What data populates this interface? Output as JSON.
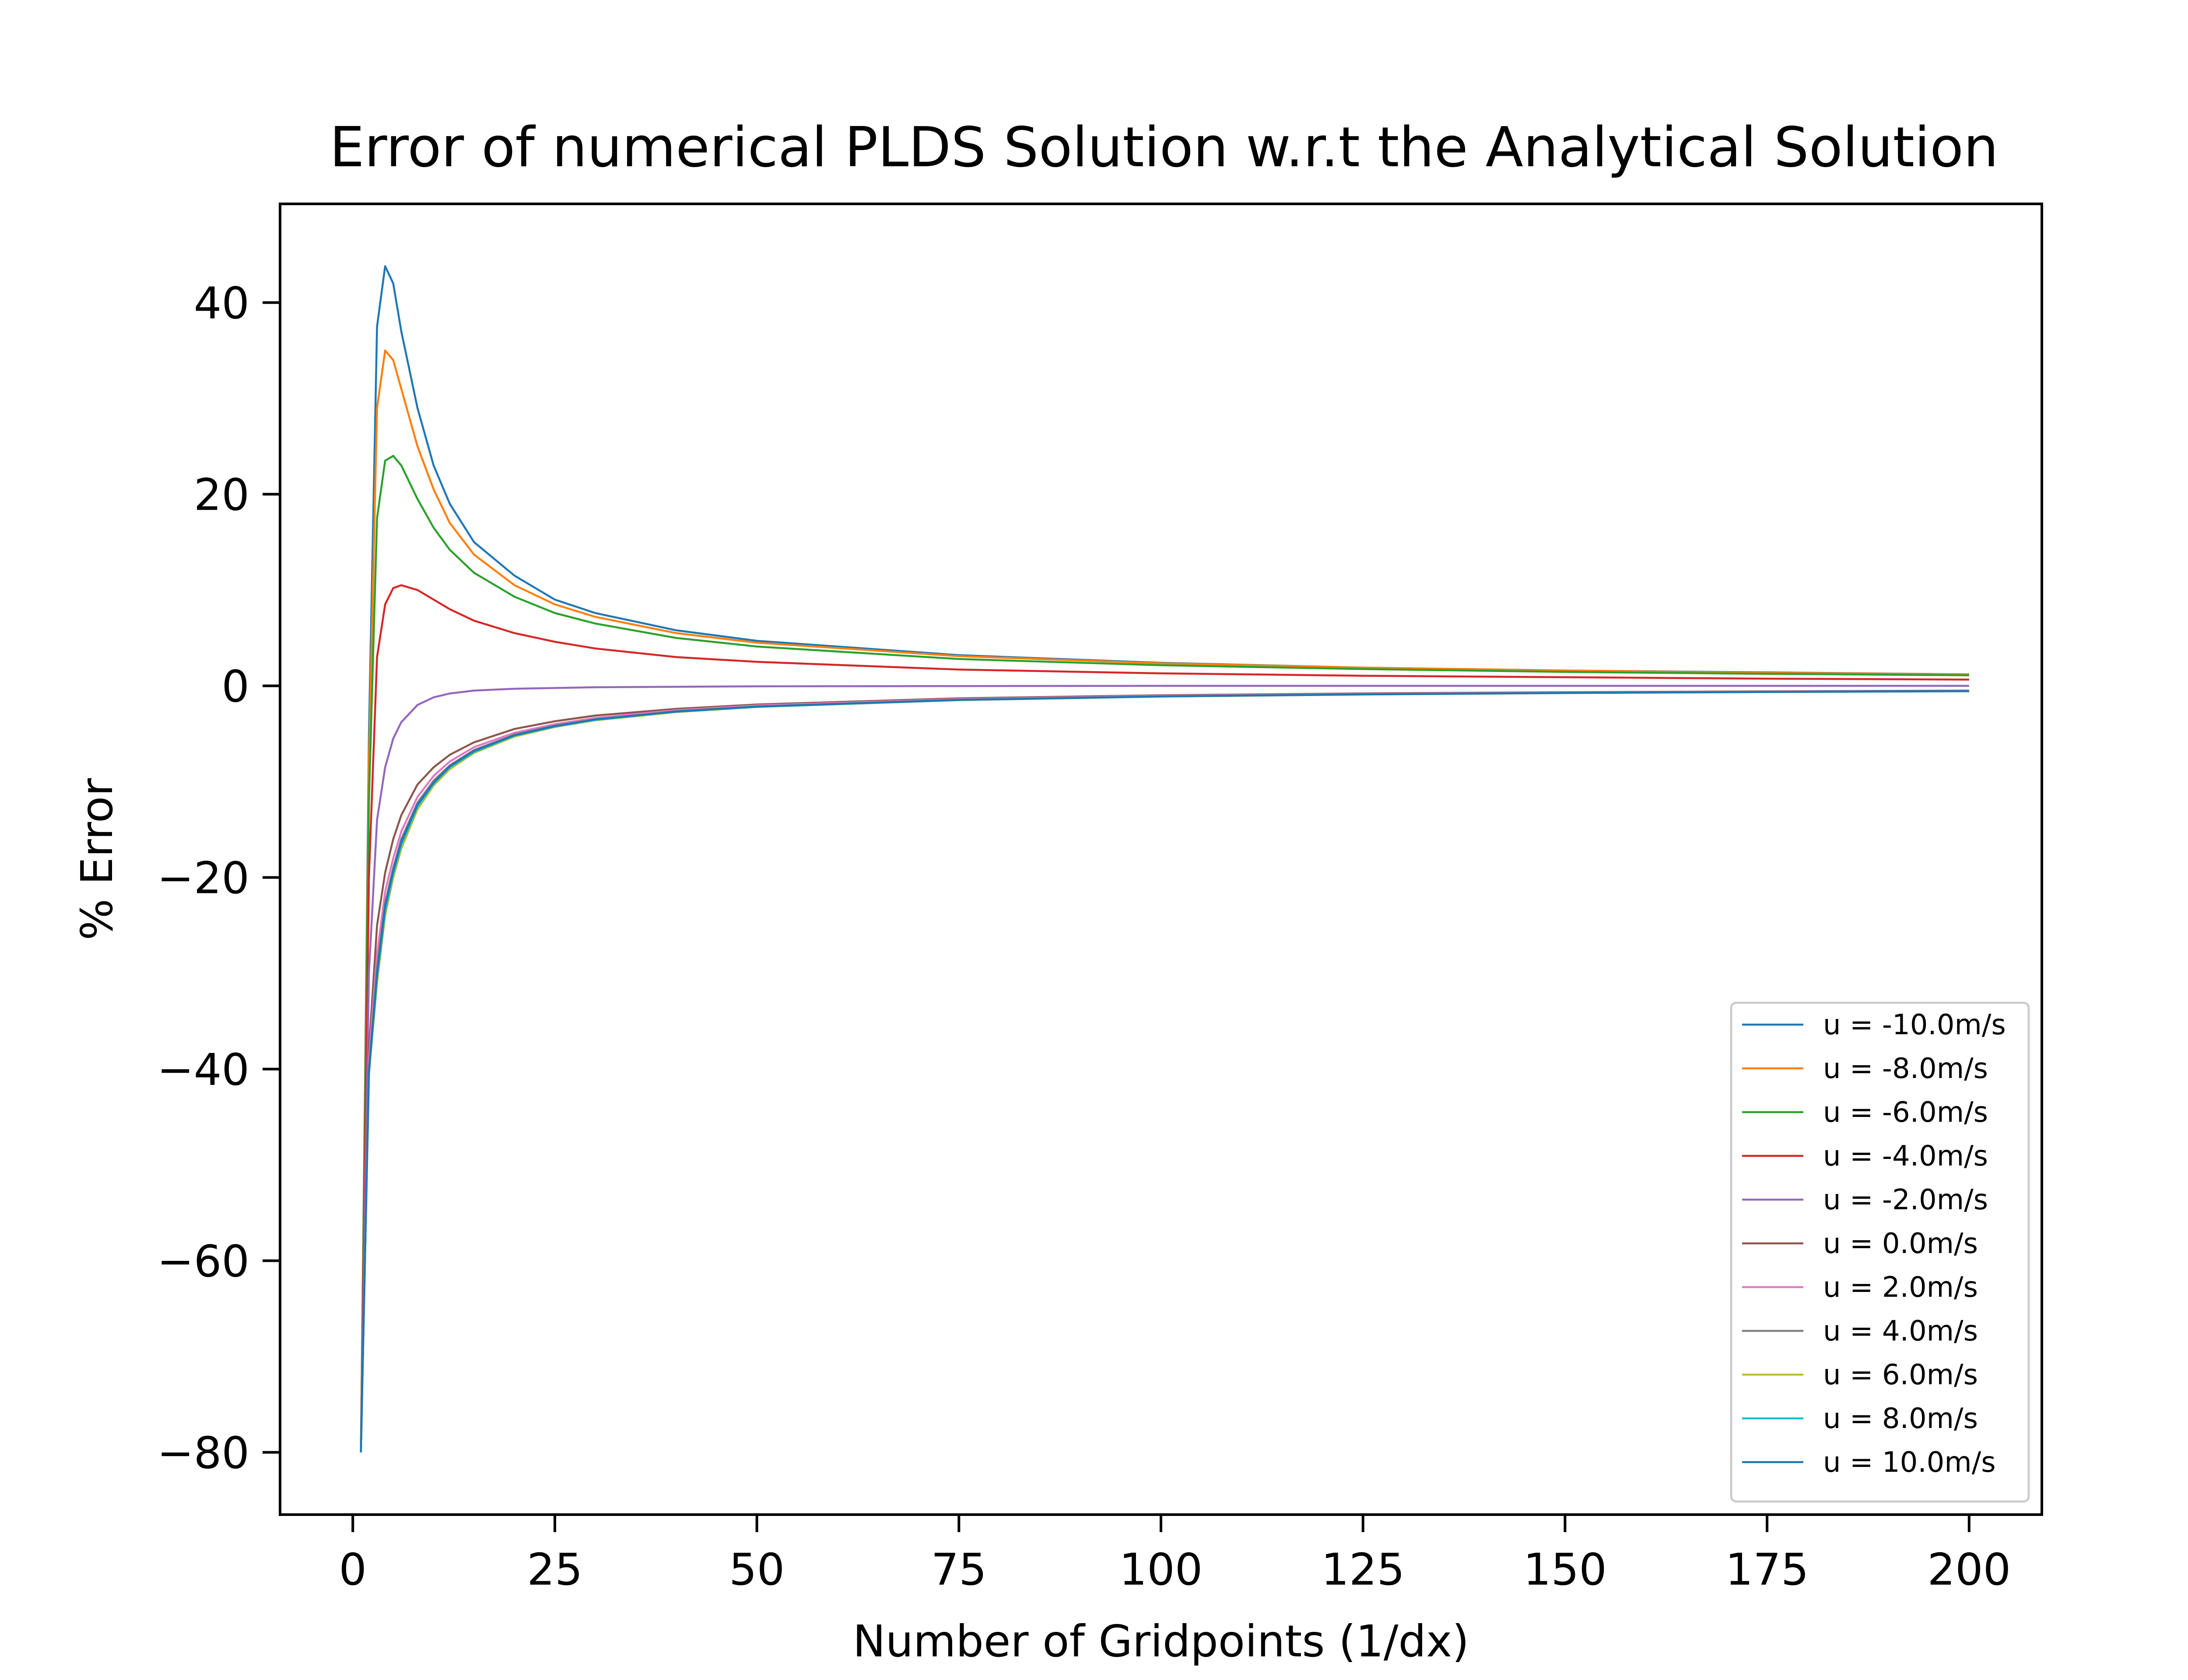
{
  "chart_data": {
    "type": "line",
    "title": "Error of numerical PLDS Solution w.r.t the Analytical Solution",
    "xlabel": "Number of Gridpoints (1/dx)",
    "ylabel": "% Error",
    "xlim": [
      -9,
      209
    ],
    "ylim": [
      -86.5,
      50.3
    ],
    "xticks": [
      0,
      25,
      50,
      75,
      100,
      125,
      150,
      175,
      200
    ],
    "yticks": [
      -80,
      -60,
      -40,
      -20,
      0,
      20,
      40
    ],
    "ytick_labels": [
      "−80",
      "−60",
      "−40",
      "−20",
      "0",
      "20",
      "40"
    ],
    "grid": false,
    "legend_position": "lower-right",
    "series": [
      {
        "name": "u = -10.0m/s",
        "color": "#1f77b4",
        "points": [
          [
            1,
            -80
          ],
          [
            2,
            -5
          ],
          [
            3,
            37.5
          ],
          [
            4,
            43.8
          ],
          [
            5,
            42
          ],
          [
            6,
            37
          ],
          [
            8,
            29
          ],
          [
            10,
            23
          ],
          [
            12,
            19
          ],
          [
            15,
            15
          ],
          [
            20,
            11.5
          ],
          [
            25,
            9
          ],
          [
            30,
            7.6
          ],
          [
            40,
            5.8
          ],
          [
            50,
            4.7
          ],
          [
            75,
            3.2
          ],
          [
            100,
            2.4
          ],
          [
            125,
            1.9
          ],
          [
            150,
            1.6
          ],
          [
            175,
            1.4
          ],
          [
            200,
            1.2
          ]
        ]
      },
      {
        "name": "u = -8.0m/s",
        "color": "#ff7f0e",
        "points": [
          [
            1,
            -80
          ],
          [
            2,
            -8
          ],
          [
            3,
            29
          ],
          [
            4,
            35
          ],
          [
            5,
            34
          ],
          [
            6,
            31
          ],
          [
            8,
            25
          ],
          [
            10,
            20.5
          ],
          [
            12,
            17
          ],
          [
            15,
            13.7
          ],
          [
            20,
            10.5
          ],
          [
            25,
            8.5
          ],
          [
            30,
            7.2
          ],
          [
            40,
            5.5
          ],
          [
            50,
            4.5
          ],
          [
            75,
            3.1
          ],
          [
            100,
            2.35
          ],
          [
            125,
            1.9
          ],
          [
            150,
            1.6
          ],
          [
            175,
            1.35
          ],
          [
            200,
            1.2
          ]
        ]
      },
      {
        "name": "u = -6.0m/s",
        "color": "#2ca02c",
        "points": [
          [
            1,
            -80
          ],
          [
            2,
            -12
          ],
          [
            3,
            17.5
          ],
          [
            4,
            23.5
          ],
          [
            5,
            24
          ],
          [
            6,
            23
          ],
          [
            8,
            19.5
          ],
          [
            10,
            16.5
          ],
          [
            12,
            14.2
          ],
          [
            15,
            11.8
          ],
          [
            20,
            9.3
          ],
          [
            25,
            7.6
          ],
          [
            30,
            6.5
          ],
          [
            40,
            5
          ],
          [
            50,
            4.1
          ],
          [
            75,
            2.8
          ],
          [
            100,
            2.15
          ],
          [
            125,
            1.75
          ],
          [
            150,
            1.45
          ],
          [
            175,
            1.25
          ],
          [
            200,
            1.1
          ]
        ]
      },
      {
        "name": "u = -4.0m/s",
        "color": "#d62728",
        "points": [
          [
            1,
            -80
          ],
          [
            2,
            -20
          ],
          [
            3,
            3
          ],
          [
            4,
            8.5
          ],
          [
            5,
            10.2
          ],
          [
            6,
            10.5
          ],
          [
            8,
            10
          ],
          [
            10,
            9
          ],
          [
            12,
            8
          ],
          [
            15,
            6.8
          ],
          [
            20,
            5.5
          ],
          [
            25,
            4.6
          ],
          [
            30,
            3.9
          ],
          [
            40,
            3
          ],
          [
            50,
            2.5
          ],
          [
            75,
            1.7
          ],
          [
            100,
            1.3
          ],
          [
            125,
            1.05
          ],
          [
            150,
            0.9
          ],
          [
            175,
            0.75
          ],
          [
            200,
            0.65
          ]
        ]
      },
      {
        "name": "u = -2.0m/s",
        "color": "#9467bd",
        "points": [
          [
            1,
            -80
          ],
          [
            2,
            -30
          ],
          [
            3,
            -14
          ],
          [
            4,
            -8.5
          ],
          [
            5,
            -5.5
          ],
          [
            6,
            -3.8
          ],
          [
            8,
            -2
          ],
          [
            10,
            -1.2
          ],
          [
            12,
            -0.8
          ],
          [
            15,
            -0.5
          ],
          [
            20,
            -0.3
          ],
          [
            30,
            -0.15
          ],
          [
            50,
            -0.05
          ],
          [
            100,
            0
          ],
          [
            200,
            0
          ]
        ]
      },
      {
        "name": "u = 0.0m/s",
        "color": "#8c564b",
        "points": [
          [
            1,
            -80
          ],
          [
            2,
            -38
          ],
          [
            3,
            -25
          ],
          [
            4,
            -19.5
          ],
          [
            5,
            -16
          ],
          [
            6,
            -13.5
          ],
          [
            8,
            -10.3
          ],
          [
            10,
            -8.5
          ],
          [
            12,
            -7.2
          ],
          [
            15,
            -5.9
          ],
          [
            20,
            -4.5
          ],
          [
            25,
            -3.7
          ],
          [
            30,
            -3.1
          ],
          [
            40,
            -2.4
          ],
          [
            50,
            -1.95
          ],
          [
            75,
            -1.3
          ],
          [
            100,
            -0.98
          ],
          [
            125,
            -0.79
          ],
          [
            150,
            -0.66
          ],
          [
            175,
            -0.57
          ],
          [
            200,
            -0.5
          ]
        ]
      },
      {
        "name": "u = 2.0m/s",
        "color": "#e377c2",
        "points": [
          [
            1,
            -80
          ],
          [
            2,
            -39
          ],
          [
            3,
            -28
          ],
          [
            4,
            -21.5
          ],
          [
            5,
            -18
          ],
          [
            6,
            -15.2
          ],
          [
            8,
            -11.6
          ],
          [
            10,
            -9.4
          ],
          [
            12,
            -7.9
          ],
          [
            15,
            -6.4
          ],
          [
            20,
            -4.9
          ],
          [
            25,
            -4
          ],
          [
            30,
            -3.35
          ],
          [
            40,
            -2.55
          ],
          [
            50,
            -2.05
          ],
          [
            75,
            -1.38
          ],
          [
            100,
            -1.04
          ],
          [
            125,
            -0.84
          ],
          [
            150,
            -0.7
          ],
          [
            175,
            -0.6
          ],
          [
            200,
            -0.53
          ]
        ]
      },
      {
        "name": "u = 4.0m/s",
        "color": "#7f7f7f",
        "points": [
          [
            1,
            -80
          ],
          [
            2,
            -40
          ],
          [
            3,
            -29.5
          ],
          [
            4,
            -22.7
          ],
          [
            5,
            -19
          ],
          [
            6,
            -16
          ],
          [
            8,
            -12.2
          ],
          [
            10,
            -9.9
          ],
          [
            12,
            -8.3
          ],
          [
            15,
            -6.7
          ],
          [
            20,
            -5.1
          ],
          [
            25,
            -4.15
          ],
          [
            30,
            -3.5
          ],
          [
            40,
            -2.65
          ],
          [
            50,
            -2.15
          ],
          [
            75,
            -1.45
          ],
          [
            100,
            -1.1
          ],
          [
            125,
            -0.88
          ],
          [
            150,
            -0.74
          ],
          [
            175,
            -0.63
          ],
          [
            200,
            -0.56
          ]
        ]
      },
      {
        "name": "u = 6.0m/s",
        "color": "#bcbd22",
        "points": [
          [
            1,
            -80
          ],
          [
            2,
            -40.5
          ],
          [
            3,
            -31
          ],
          [
            4,
            -24
          ],
          [
            5,
            -20
          ],
          [
            6,
            -17
          ],
          [
            8,
            -12.9
          ],
          [
            10,
            -10.4
          ],
          [
            12,
            -8.7
          ],
          [
            15,
            -7
          ],
          [
            20,
            -5.3
          ],
          [
            25,
            -4.3
          ],
          [
            30,
            -3.6
          ],
          [
            40,
            -2.75
          ],
          [
            50,
            -2.2
          ],
          [
            75,
            -1.5
          ],
          [
            100,
            -1.13
          ],
          [
            125,
            -0.91
          ],
          [
            150,
            -0.76
          ],
          [
            175,
            -0.65
          ],
          [
            200,
            -0.57
          ]
        ]
      },
      {
        "name": "u = 8.0m/s",
        "color": "#17becf",
        "points": [
          [
            1,
            -80
          ],
          [
            2,
            -40.5
          ],
          [
            3,
            -30.5
          ],
          [
            4,
            -23.5
          ],
          [
            5,
            -19.6
          ],
          [
            6,
            -16.6
          ],
          [
            8,
            -12.6
          ],
          [
            10,
            -10.2
          ],
          [
            12,
            -8.5
          ],
          [
            15,
            -6.9
          ],
          [
            20,
            -5.2
          ],
          [
            25,
            -4.25
          ],
          [
            30,
            -3.55
          ],
          [
            40,
            -2.7
          ],
          [
            50,
            -2.2
          ],
          [
            75,
            -1.48
          ],
          [
            100,
            -1.12
          ],
          [
            125,
            -0.9
          ],
          [
            150,
            -0.75
          ],
          [
            175,
            -0.64
          ],
          [
            200,
            -0.56
          ]
        ]
      },
      {
        "name": "u = 10.0m/s",
        "color": "#1f77b4",
        "points": [
          [
            1,
            -80
          ],
          [
            2,
            -40.3
          ],
          [
            3,
            -30
          ],
          [
            4,
            -23
          ],
          [
            5,
            -19.3
          ],
          [
            6,
            -16.3
          ],
          [
            8,
            -12.4
          ],
          [
            10,
            -10.1
          ],
          [
            12,
            -8.4
          ],
          [
            15,
            -6.8
          ],
          [
            20,
            -5.15
          ],
          [
            25,
            -4.2
          ],
          [
            30,
            -3.5
          ],
          [
            40,
            -2.68
          ],
          [
            50,
            -2.17
          ],
          [
            75,
            -1.46
          ],
          [
            100,
            -1.1
          ],
          [
            125,
            -0.89
          ],
          [
            150,
            -0.74
          ],
          [
            175,
            -0.64
          ],
          [
            200,
            -0.55
          ]
        ]
      }
    ]
  }
}
